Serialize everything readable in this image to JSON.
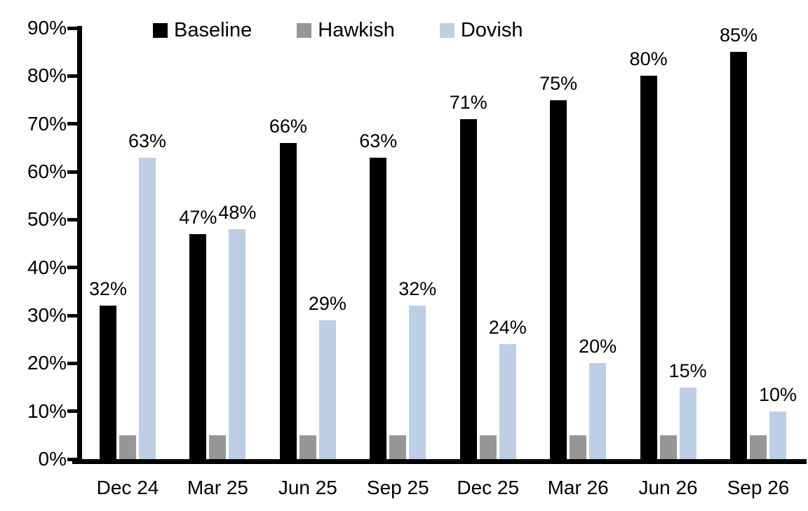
{
  "chart_data": {
    "type": "bar",
    "title": "",
    "xlabel": "",
    "ylabel": "",
    "categories": [
      "Dec 24",
      "Mar 25",
      "Jun 25",
      "Sep 25",
      "Dec 25",
      "Mar 26",
      "Jun 26",
      "Sep 26"
    ],
    "series": [
      {
        "name": "Baseline",
        "color": "#000000",
        "values": [
          32,
          47,
          66,
          63,
          71,
          75,
          80,
          85
        ],
        "labels": [
          "32%",
          "47%",
          "66%",
          "63%",
          "71%",
          "75%",
          "80%",
          "85%"
        ],
        "show_labels": true
      },
      {
        "name": "Hawkish",
        "color": "#969696",
        "values": [
          5,
          5,
          5,
          5,
          5,
          5,
          5,
          5
        ],
        "labels": null,
        "show_labels": false
      },
      {
        "name": "Dovish",
        "color": "#BCCFE5",
        "values": [
          63,
          48,
          29,
          32,
          24,
          20,
          15,
          10
        ],
        "labels": [
          "63%",
          "48%",
          "29%",
          "32%",
          "24%",
          "20%",
          "15%",
          "10%"
        ],
        "show_labels": true
      }
    ],
    "ylim": [
      0,
      90
    ],
    "ytick_step": 10,
    "ytick_labels": [
      "0%",
      "10%",
      "20%",
      "30%",
      "40%",
      "50%",
      "60%",
      "70%",
      "80%",
      "90%"
    ],
    "legend_position": "top",
    "grid": false,
    "axis_color": "#000000",
    "background_color": "#ffffff"
  }
}
